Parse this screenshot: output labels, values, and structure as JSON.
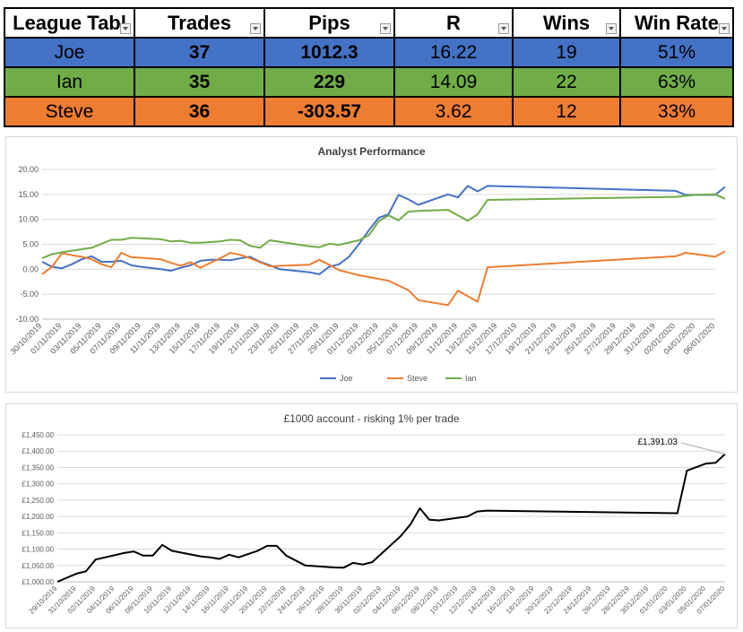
{
  "league_table": {
    "headers": [
      "League Tabl",
      "Trades",
      "Pips",
      "R",
      "Wins",
      "Win Rate"
    ],
    "rows": [
      {
        "name": "Joe",
        "trades": "37",
        "pips": "1012.3",
        "r": "16.22",
        "wins": "19",
        "win_rate": "51%"
      },
      {
        "name": "Ian",
        "trades": "35",
        "pips": "229",
        "r": "14.09",
        "wins": "22",
        "win_rate": "63%"
      },
      {
        "name": "Steve",
        "trades": "36",
        "pips": "-303.57",
        "r": "3.62",
        "wins": "12",
        "win_rate": "33%"
      }
    ],
    "colors": {
      "joe": "#4472c4",
      "ian": "#70ad47",
      "steve": "#ed7d31"
    }
  },
  "chart_data": [
    {
      "type": "line",
      "title": "Analyst Performance",
      "xlabel": "",
      "ylabel": "",
      "ylim": [
        -10,
        20
      ],
      "yticks": [
        "20.00",
        "15.00",
        "10.00",
        "5.00",
        "0.00",
        "-5.00",
        "-10.00"
      ],
      "xticks": [
        "30/10/2019",
        "01/11/2019",
        "03/11/2019",
        "05/11/2019",
        "07/11/2019",
        "09/11/2019",
        "11/11/2019",
        "13/11/2019",
        "15/11/2019",
        "17/11/2019",
        "19/11/2019",
        "21/11/2019",
        "23/11/2019",
        "25/11/2019",
        "27/11/2019",
        "29/11/2019",
        "01/12/2019",
        "03/12/2019",
        "05/12/2019",
        "07/12/2019",
        "09/12/2019",
        "11/12/2019",
        "13/12/2019",
        "15/12/2019",
        "17/12/2019",
        "19/12/2019",
        "21/12/2019",
        "23/12/2019",
        "25/12/2019",
        "27/12/2019",
        "29/12/2019",
        "31/12/2019",
        "02/01/2020",
        "04/01/2020",
        "06/01/2020"
      ],
      "grid": true,
      "legend_position": "bottom",
      "series": [
        {
          "name": "Joe",
          "color": "#4472c4",
          "points": [
            [
              "2019-10-30",
              1.5
            ],
            [
              "2019-10-31",
              0.5
            ],
            [
              "2019-11-01",
              0.2
            ],
            [
              "2019-11-02",
              1.0
            ],
            [
              "2019-11-03",
              2.0
            ],
            [
              "2019-11-04",
              2.6
            ],
            [
              "2019-11-05",
              1.5
            ],
            [
              "2019-11-06",
              1.5
            ],
            [
              "2019-11-07",
              1.7
            ],
            [
              "2019-11-08",
              0.8
            ],
            [
              "2019-11-09",
              0.5
            ],
            [
              "2019-11-11",
              0.0
            ],
            [
              "2019-11-12",
              -0.3
            ],
            [
              "2019-11-13",
              0.3
            ],
            [
              "2019-11-14",
              0.8
            ],
            [
              "2019-11-15",
              1.7
            ],
            [
              "2019-11-16",
              1.9
            ],
            [
              "2019-11-17",
              1.9
            ],
            [
              "2019-11-18",
              1.8
            ],
            [
              "2019-11-19",
              2.2
            ],
            [
              "2019-11-20",
              2.5
            ],
            [
              "2019-11-21",
              1.5
            ],
            [
              "2019-11-22",
              0.8
            ],
            [
              "2019-11-23",
              0.0
            ],
            [
              "2019-11-26",
              -0.6
            ],
            [
              "2019-11-27",
              -1.0
            ],
            [
              "2019-11-28",
              0.5
            ],
            [
              "2019-11-29",
              1.0
            ],
            [
              "2019-11-30",
              2.5
            ],
            [
              "2019-12-01",
              5.0
            ],
            [
              "2019-12-02",
              7.8
            ],
            [
              "2019-12-03",
              10.3
            ],
            [
              "2019-12-04",
              11.0
            ],
            [
              "2019-12-05",
              14.9
            ],
            [
              "2019-12-06",
              14.0
            ],
            [
              "2019-12-07",
              12.9
            ],
            [
              "2019-12-10",
              15.0
            ],
            [
              "2019-12-11",
              14.4
            ],
            [
              "2019-12-12",
              16.7
            ],
            [
              "2019-12-13",
              15.6
            ],
            [
              "2019-12-14",
              16.7
            ],
            [
              "2020-01-02",
              15.7
            ],
            [
              "2020-01-03",
              14.9
            ],
            [
              "2020-01-06",
              14.9
            ],
            [
              "2020-01-07",
              16.5
            ]
          ]
        },
        {
          "name": "Steve",
          "color": "#ed7d31",
          "points": [
            [
              "2019-10-30",
              -1.0
            ],
            [
              "2019-10-31",
              0.5
            ],
            [
              "2019-11-01",
              3.2
            ],
            [
              "2019-11-02",
              2.8
            ],
            [
              "2019-11-03",
              2.5
            ],
            [
              "2019-11-04",
              2.0
            ],
            [
              "2019-11-05",
              1.0
            ],
            [
              "2019-11-06",
              0.4
            ],
            [
              "2019-11-07",
              3.3
            ],
            [
              "2019-11-08",
              2.4
            ],
            [
              "2019-11-09",
              2.3
            ],
            [
              "2019-11-11",
              2.0
            ],
            [
              "2019-11-12",
              1.3
            ],
            [
              "2019-11-13",
              0.7
            ],
            [
              "2019-11-14",
              1.4
            ],
            [
              "2019-11-15",
              0.3
            ],
            [
              "2019-11-16",
              1.3
            ],
            [
              "2019-11-17",
              2.2
            ],
            [
              "2019-11-18",
              3.3
            ],
            [
              "2019-11-19",
              2.9
            ],
            [
              "2019-11-20",
              2.2
            ],
            [
              "2019-11-21",
              1.4
            ],
            [
              "2019-11-22",
              0.6
            ],
            [
              "2019-11-26",
              0.9
            ],
            [
              "2019-11-27",
              1.9
            ],
            [
              "2019-11-28",
              0.9
            ],
            [
              "2019-11-29",
              -0.2
            ],
            [
              "2019-11-30",
              -0.7
            ],
            [
              "2019-12-01",
              -1.2
            ],
            [
              "2019-12-04",
              -2.3
            ],
            [
              "2019-12-06",
              -4.2
            ],
            [
              "2019-12-07",
              -6.2
            ],
            [
              "2019-12-10",
              -7.2
            ],
            [
              "2019-12-11",
              -4.3
            ],
            [
              "2019-12-13",
              -6.5
            ],
            [
              "2019-12-14",
              0.4
            ],
            [
              "2020-01-02",
              2.6
            ],
            [
              "2020-01-03",
              3.3
            ],
            [
              "2020-01-06",
              2.5
            ],
            [
              "2020-01-07",
              3.6
            ]
          ]
        },
        {
          "name": "Ian",
          "color": "#70ad47",
          "points": [
            [
              "2019-10-30",
              2.2
            ],
            [
              "2019-10-31",
              3.0
            ],
            [
              "2019-11-01",
              3.4
            ],
            [
              "2019-11-04",
              4.3
            ],
            [
              "2019-11-06",
              5.9
            ],
            [
              "2019-11-07",
              5.9
            ],
            [
              "2019-11-08",
              6.3
            ],
            [
              "2019-11-11",
              6.0
            ],
            [
              "2019-11-12",
              5.6
            ],
            [
              "2019-11-13",
              5.7
            ],
            [
              "2019-11-14",
              5.3
            ],
            [
              "2019-11-15",
              5.3
            ],
            [
              "2019-11-17",
              5.6
            ],
            [
              "2019-11-18",
              5.9
            ],
            [
              "2019-11-19",
              5.8
            ],
            [
              "2019-11-20",
              4.7
            ],
            [
              "2019-11-21",
              4.3
            ],
            [
              "2019-11-22",
              5.8
            ],
            [
              "2019-11-26",
              4.6
            ],
            [
              "2019-11-27",
              4.4
            ],
            [
              "2019-11-28",
              5.1
            ],
            [
              "2019-11-29",
              4.9
            ],
            [
              "2019-12-01",
              5.8
            ],
            [
              "2019-12-02",
              6.8
            ],
            [
              "2019-12-03",
              9.6
            ],
            [
              "2019-12-04",
              10.8
            ],
            [
              "2019-12-05",
              9.8
            ],
            [
              "2019-12-06",
              11.5
            ],
            [
              "2019-12-07",
              11.7
            ],
            [
              "2019-12-10",
              11.9
            ],
            [
              "2019-12-12",
              9.7
            ],
            [
              "2019-12-13",
              11.0
            ],
            [
              "2019-12-14",
              13.9
            ],
            [
              "2020-01-02",
              14.5
            ],
            [
              "2020-01-04",
              14.9
            ],
            [
              "2020-01-06",
              15.0
            ],
            [
              "2020-01-07",
              14.1
            ]
          ]
        }
      ]
    },
    {
      "type": "line",
      "title": "£1000 account - risking 1% per trade",
      "xlabel": "",
      "ylabel": "",
      "ylim": [
        1000,
        1450
      ],
      "yticks": [
        "£1,450.00",
        "£1,400.00",
        "£1,350.00",
        "£1,300.00",
        "£1,250.00",
        "£1,200.00",
        "£1,150.00",
        "£1,100.00",
        "£1,050.00",
        "£1,000.00"
      ],
      "xticks": [
        "29/10/2019",
        "31/10/2019",
        "02/11/2019",
        "04/11/2019",
        "06/11/2019",
        "08/11/2019",
        "10/11/2019",
        "12/11/2019",
        "14/11/2019",
        "16/11/2019",
        "18/11/2019",
        "20/11/2019",
        "22/11/2019",
        "24/11/2019",
        "26/11/2019",
        "28/11/2019",
        "30/11/2019",
        "02/12/2019",
        "04/12/2019",
        "06/12/2019",
        "08/12/2019",
        "10/12/2019",
        "12/12/2019",
        "14/12/2019",
        "16/12/2019",
        "18/12/2019",
        "20/12/2019",
        "22/12/2019",
        "24/12/2019",
        "26/12/2019",
        "28/12/2019",
        "30/12/2019",
        "01/01/2020",
        "03/01/2020",
        "05/01/2020",
        "07/01/2020"
      ],
      "grid": true,
      "annotation": "£1,391.03",
      "series": [
        {
          "name": "",
          "color": "#000000",
          "points": [
            [
              "2019-10-29",
              1000
            ],
            [
              "2019-10-31",
              1025
            ],
            [
              "2019-11-01",
              1032
            ],
            [
              "2019-11-02",
              1068
            ],
            [
              "2019-11-05",
              1088
            ],
            [
              "2019-11-06",
              1093
            ],
            [
              "2019-11-07",
              1080
            ],
            [
              "2019-11-08",
              1080
            ],
            [
              "2019-11-09",
              1113
            ],
            [
              "2019-11-10",
              1095
            ],
            [
              "2019-11-13",
              1078
            ],
            [
              "2019-11-14",
              1075
            ],
            [
              "2019-11-15",
              1070
            ],
            [
              "2019-11-16",
              1083
            ],
            [
              "2019-11-17",
              1075
            ],
            [
              "2019-11-19",
              1095
            ],
            [
              "2019-11-20",
              1110
            ],
            [
              "2019-11-21",
              1110
            ],
            [
              "2019-11-22",
              1080
            ],
            [
              "2019-11-24",
              1050
            ],
            [
              "2019-11-27",
              1044
            ],
            [
              "2019-11-28",
              1043
            ],
            [
              "2019-11-29",
              1058
            ],
            [
              "2019-11-30",
              1053
            ],
            [
              "2019-12-01",
              1060
            ],
            [
              "2019-12-04",
              1140
            ],
            [
              "2019-12-05",
              1175
            ],
            [
              "2019-12-06",
              1225
            ],
            [
              "2019-12-07",
              1190
            ],
            [
              "2019-12-08",
              1188
            ],
            [
              "2019-12-11",
              1200
            ],
            [
              "2019-12-12",
              1215
            ],
            [
              "2019-12-13",
              1218
            ],
            [
              "2020-01-02",
              1210
            ],
            [
              "2020-01-03",
              1340
            ],
            [
              "2020-01-05",
              1362
            ],
            [
              "2020-01-06",
              1364
            ],
            [
              "2020-01-07",
              1391.03
            ]
          ]
        }
      ]
    }
  ]
}
